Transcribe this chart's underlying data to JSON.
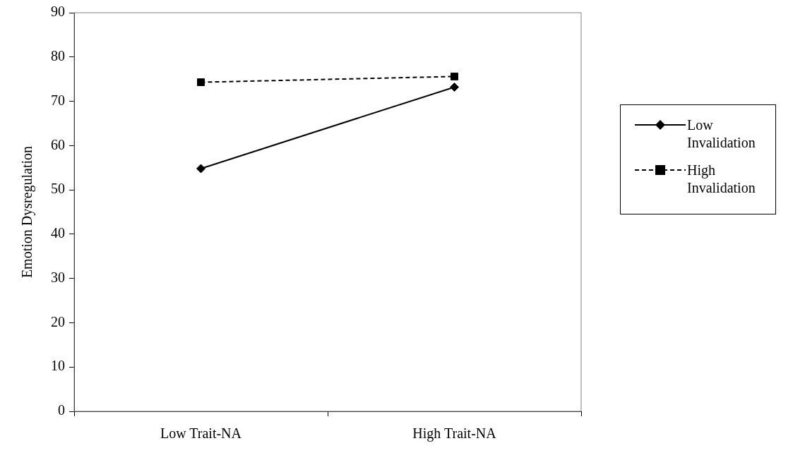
{
  "chart_data": {
    "type": "line",
    "ylabel": "Emotion Dysregulation",
    "categories": [
      "Low Trait-NA",
      "High Trait-NA"
    ],
    "series": [
      {
        "name": "Low Invalidation",
        "color": "#000000",
        "values": [
          54.8,
          73.2
        ],
        "marker": "diamond",
        "line_style": "solid"
      },
      {
        "name": "High Invalidation",
        "color": "#000000",
        "values": [
          74.3,
          75.6
        ],
        "marker": "square",
        "line_style": "dashed"
      }
    ],
    "ylim": [
      0,
      90
    ],
    "yticks": [
      0,
      10,
      20,
      30,
      40,
      50,
      60,
      70,
      80,
      90
    ],
    "grid": false,
    "legend": "right"
  }
}
